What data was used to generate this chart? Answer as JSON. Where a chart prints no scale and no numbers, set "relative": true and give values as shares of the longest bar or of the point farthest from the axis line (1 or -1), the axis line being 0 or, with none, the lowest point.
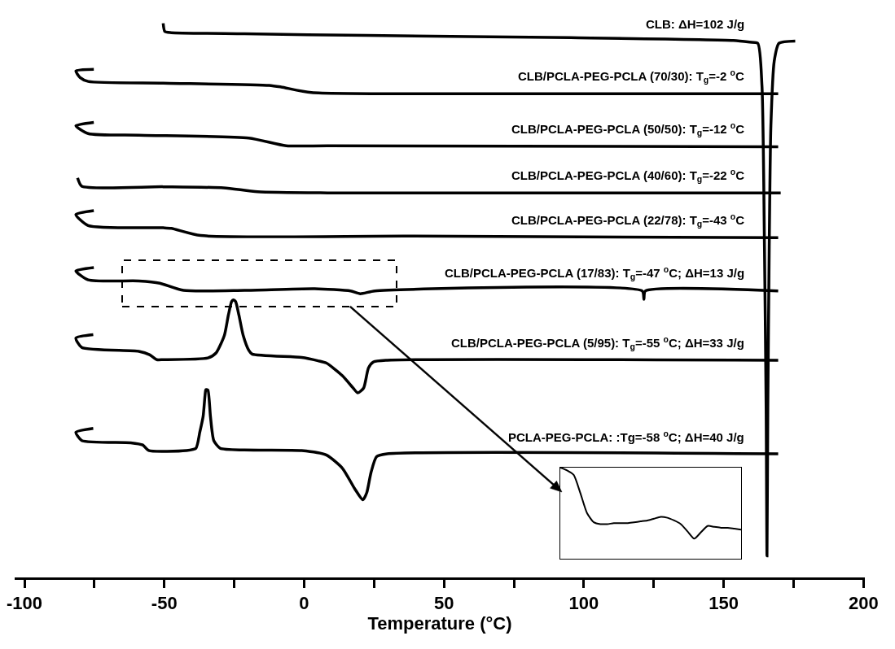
{
  "chart_data": [
    {
      "type": "line",
      "relative": true,
      "xlabel": "Temperature (°C)",
      "xlim": [
        -103.5,
        200.5
      ],
      "xticks": [
        -100,
        {
          "value": -75,
          "label": null
        },
        -50,
        {
          "value": -25,
          "label": null
        },
        0,
        {
          "value": 25,
          "label": null
        },
        50,
        {
          "value": 75,
          "label": null
        },
        100,
        {
          "value": 125,
          "label": null
        },
        150,
        {
          "value": 175,
          "label": null
        },
        200
      ],
      "tick_labels": "x",
      "series": [
        {
          "name": "CLB: ΔH=102 J/g",
          "color": "#000000",
          "x": [
            -50.4,
            -49.8,
            -47.5,
            -21.3,
            22.4,
            95.3,
            153.5,
            159.3,
            162.2,
            163.7,
            164.6,
            165.2,
            165.5,
            165.8,
            166.3,
            166.9,
            168.1,
            169.8,
            175.6
          ],
          "values": [
            1.0,
            0.985,
            0.983,
            0.981,
            0.978,
            0.974,
            0.969,
            0.966,
            0.964,
            0.888,
            0.597,
            0.306,
            0.039,
            0.306,
            0.597,
            0.815,
            0.932,
            0.964,
            0.968
          ]
        },
        {
          "name": "CLB/PCLA-PEG-PCLA (70/30): T$_{g}$=-2 $^{o}$C",
          "color": "#000000",
          "x": [
            -75.2,
            -81.6,
            -80.1,
            -77.2,
            -50.4,
            -12.5,
            -8.2,
            2.6,
            66.1,
            169.5
          ],
          "values": [
            0.917,
            0.914,
            0.902,
            0.895,
            0.892,
            0.888,
            0.885,
            0.875,
            0.873,
            0.873
          ]
        },
        {
          "name": "CLB/PCLA-PEG-PCLA (50/50): T$_{g}$=-12 $^{o}$C",
          "color": "#000000",
          "x": [
            -75.2,
            -81.6,
            -77.2,
            -59.1,
            -19.8,
            -6.4,
            8.4,
            169.5
          ],
          "values": [
            0.821,
            0.815,
            0.801,
            0.798,
            0.793,
            0.779,
            0.779,
            0.777
          ]
        },
        {
          "name": "CLB/PCLA-PEG-PCLA (40/60): T$_{g}$=-22 $^{o}$C",
          "color": "#000000",
          "x": [
            -81.0,
            -79.5,
            -50.4,
            -28.8,
            -16.6,
            8.4,
            170.4
          ],
          "values": [
            0.721,
            0.706,
            0.705,
            0.703,
            0.696,
            0.694,
            0.694
          ]
        },
        {
          "name": "CLB/PCLA-PEG-PCLA (22/78): T$_{g}$=-43 $^{o}$C",
          "color": "#000000",
          "x": [
            -75.2,
            -81.6,
            -77.2,
            -50.4,
            -47.5,
            -37.0,
            37.0,
            169.5
          ],
          "values": [
            0.662,
            0.655,
            0.635,
            0.631,
            0.63,
            0.617,
            0.616,
            0.613
          ]
        },
        {
          "name": "CLB/PCLA-PEG-PCLA (17/83): T$_{g}$=-47 $^{o}$C; ΔH=13 J/g",
          "color": "#000000",
          "x": [
            -75.2,
            -81.6,
            -77.2,
            -59.1,
            -51.6,
            -43.1,
            -21.3,
            3.8,
            16.6,
            20.1,
            25.3,
            120.9,
            121.5,
            122.0,
            169.5
          ],
          "values": [
            0.559,
            0.553,
            0.537,
            0.535,
            0.531,
            0.518,
            0.518,
            0.521,
            0.517,
            0.512,
            0.517,
            0.517,
            0.502,
            0.517,
            0.517
          ]
        },
        {
          "name": "CLB/PCLA-PEG-PCLA (5/95): T$_{g}$=-55 $^{o}$C; ΔH=33 J/g",
          "color": "#000000",
          "x": [
            -75.4,
            -81.6,
            -79.5,
            -59.1,
            -55.3,
            -52.7,
            -50.4,
            -34.4,
            -31.5,
            -28.5,
            -27.1,
            -25.9,
            -25.3,
            -24.5,
            -23.3,
            -21.8,
            -19.8,
            -18.6,
            -0.9,
            5.0,
            7.9,
            13.7,
            17.5,
            19.2,
            21.3,
            23.0,
            24.8,
            29.7,
            169.5
          ],
          "values": [
            0.438,
            0.432,
            0.415,
            0.408,
            0.402,
            0.393,
            0.393,
            0.396,
            0.405,
            0.437,
            0.473,
            0.498,
            0.501,
            0.498,
            0.473,
            0.437,
            0.41,
            0.403,
            0.397,
            0.391,
            0.387,
            0.364,
            0.342,
            0.333,
            0.342,
            0.378,
            0.389,
            0.392,
            0.392
          ]
        },
        {
          "name": "PCLA-PEG-PCLA: :Tg=-58 $^{o}$C; ΔH=40 J/g",
          "color": "#000000",
          "x": [
            -75.4,
            -81.6,
            -79.5,
            -62.0,
            -57.7,
            -55.6,
            -42.2,
            -38.7,
            -37.3,
            -36.1,
            -35.2,
            -35.0,
            -34.4,
            -33.5,
            -32.3,
            -30.0,
            -21.3,
            -0.9,
            7.9,
            13.7,
            18.1,
            21.0,
            22.4,
            23.9,
            25.9,
            29.7,
            169.5
          ],
          "values": [
            0.269,
            0.262,
            0.247,
            0.243,
            0.239,
            0.229,
            0.229,
            0.233,
            0.262,
            0.291,
            0.338,
            0.339,
            0.338,
            0.291,
            0.247,
            0.233,
            0.23,
            0.229,
            0.221,
            0.197,
            0.16,
            0.14,
            0.153,
            0.189,
            0.218,
            0.223,
            0.223
          ]
        }
      ]
    },
    {
      "type": "line",
      "relative": true,
      "tick_labels": false,
      "categories": [
        null,
        null,
        null,
        null,
        null,
        null,
        null,
        null,
        null,
        null,
        null,
        null,
        null,
        null,
        null,
        null,
        null,
        null,
        null,
        null,
        null,
        null,
        null,
        null,
        null,
        null,
        null,
        null
      ],
      "series": [
        {
          "color": "#000000",
          "values": [
            1.0,
            0.97,
            0.92,
            0.72,
            0.5,
            0.4,
            0.38,
            0.38,
            0.39,
            0.39,
            0.39,
            0.4,
            0.41,
            0.42,
            0.44,
            0.46,
            0.45,
            0.42,
            0.38,
            0.3,
            0.22,
            0.29,
            0.36,
            0.35,
            0.34,
            0.34,
            0.33,
            0.32
          ]
        }
      ]
    }
  ]
}
